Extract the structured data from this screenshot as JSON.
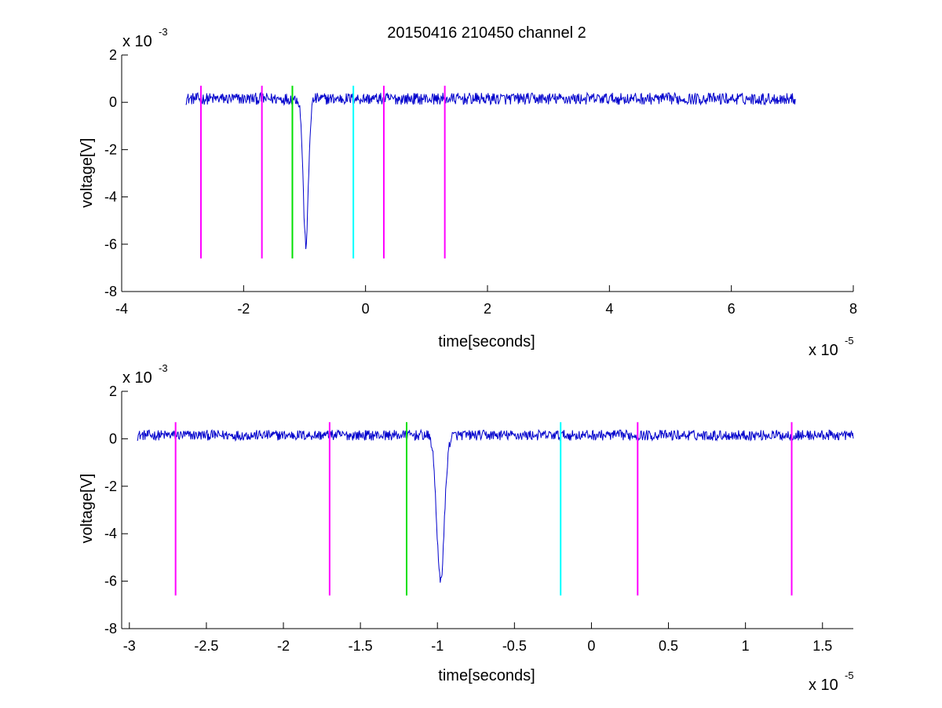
{
  "title": "20150416 210450 channel 2",
  "colors": {
    "signal": "#0000cc",
    "magenta": "#ff00ff",
    "green": "#00e000",
    "cyan": "#00ffff",
    "axis": "#000000"
  },
  "chart_data": [
    {
      "type": "line",
      "title": "20150416 210450 channel 2",
      "xlabel": "time[seconds]",
      "ylabel": "voltage[V]",
      "x_exponent": {
        "base": "x 10",
        "power": "-5"
      },
      "y_exponent": {
        "base": "x 10",
        "power": "-3"
      },
      "xlim": [
        -4,
        8
      ],
      "ylim": [
        -8,
        2
      ],
      "xticks": [
        -4,
        -2,
        0,
        2,
        4,
        6,
        8
      ],
      "xtick_labels": [
        "-4",
        "-2",
        "0",
        "2",
        "4",
        "6",
        "8"
      ],
      "yticks": [
        2,
        0,
        -2,
        -4,
        -6,
        -8
      ],
      "ytick_labels": [
        "2",
        "0",
        "-2",
        "-4",
        "-6",
        "-8"
      ],
      "grid": false,
      "series": [
        {
          "kind": "noise-trace",
          "color": "signal",
          "x_start": -2.95,
          "x_end": 7.05,
          "baseline": 0.15,
          "noise_amplitude": 0.25,
          "pulse": {
            "x": -0.98,
            "min": -6.0,
            "width": 0.06
          }
        }
      ],
      "markers": [
        {
          "x": -2.7,
          "color": "magenta",
          "y_top": 0.7,
          "y_bottom": -6.6
        },
        {
          "x": -1.7,
          "color": "magenta",
          "y_top": 0.7,
          "y_bottom": -6.6
        },
        {
          "x": -1.2,
          "color": "green",
          "y_top": 0.7,
          "y_bottom": -6.6
        },
        {
          "x": -0.2,
          "color": "cyan",
          "y_top": 0.7,
          "y_bottom": -6.6
        },
        {
          "x": 0.3,
          "color": "magenta",
          "y_top": 0.7,
          "y_bottom": -6.6
        },
        {
          "x": 1.3,
          "color": "magenta",
          "y_top": 0.7,
          "y_bottom": -6.6
        }
      ]
    },
    {
      "type": "line",
      "title": "",
      "xlabel": "time[seconds]",
      "ylabel": "voltage[V]",
      "x_exponent": {
        "base": "x 10",
        "power": "-5"
      },
      "y_exponent": {
        "base": "x 10",
        "power": "-3"
      },
      "xlim": [
        -3.05,
        1.7
      ],
      "ylim": [
        -8,
        2
      ],
      "xticks": [
        -3,
        -2.5,
        -2,
        -1.5,
        -1,
        -0.5,
        0,
        0.5,
        1,
        1.5
      ],
      "xtick_labels": [
        "-3",
        "-2.5",
        "-2",
        "-1.5",
        "-1",
        "-0.5",
        "0",
        "0.5",
        "1",
        "1.5"
      ],
      "yticks": [
        2,
        0,
        -2,
        -4,
        -6,
        -8
      ],
      "ytick_labels": [
        "2",
        "0",
        "-2",
        "-4",
        "-6",
        "-8"
      ],
      "grid": false,
      "series": [
        {
          "kind": "noise-trace",
          "color": "signal",
          "x_start": -2.95,
          "x_end": 1.7,
          "baseline": 0.15,
          "noise_amplitude": 0.22,
          "pulse": {
            "x": -0.98,
            "min": -6.0,
            "width": 0.035
          }
        }
      ],
      "markers": [
        {
          "x": -2.7,
          "color": "magenta",
          "y_top": 0.7,
          "y_bottom": -6.6
        },
        {
          "x": -1.7,
          "color": "magenta",
          "y_top": 0.7,
          "y_bottom": -6.6
        },
        {
          "x": -1.2,
          "color": "green",
          "y_top": 0.7,
          "y_bottom": -6.6
        },
        {
          "x": -0.2,
          "color": "cyan",
          "y_top": 0.7,
          "y_bottom": -6.6
        },
        {
          "x": 0.3,
          "color": "magenta",
          "y_top": 0.7,
          "y_bottom": -6.6
        },
        {
          "x": 1.3,
          "color": "magenta",
          "y_top": 0.7,
          "y_bottom": -6.6
        }
      ]
    }
  ]
}
